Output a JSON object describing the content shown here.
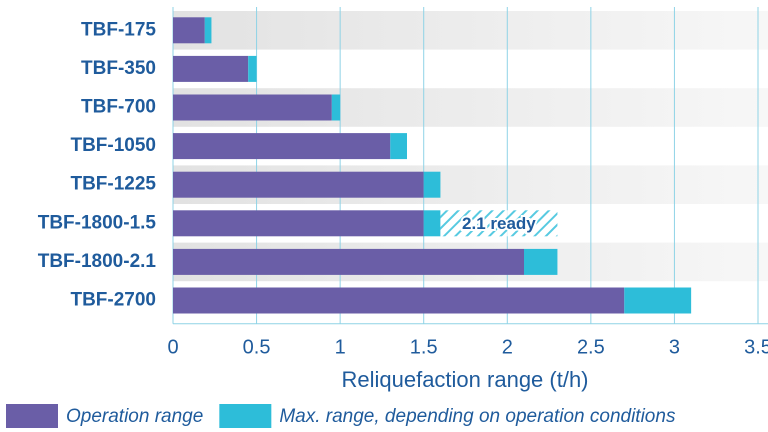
{
  "chart_data": {
    "type": "stacked-barh",
    "categories": [
      "TBF-175",
      "TBF-350",
      "TBF-700",
      "TBF-1050",
      "TBF-1225",
      "TBF-1800-1.5",
      "TBF-1800-2.1",
      "TBF-2700"
    ],
    "series": [
      {
        "name": "Operation range",
        "color": "#6a5ea7",
        "values": [
          0.19,
          0.45,
          0.95,
          1.3,
          1.5,
          1.5,
          2.1,
          2.7
        ]
      },
      {
        "name": "Max. range, depending on operation conditions",
        "color": "#2dbdd9",
        "values": [
          0.04,
          0.05,
          0.05,
          0.1,
          0.1,
          0.1,
          0.2,
          0.4
        ]
      }
    ],
    "extension": {
      "label": "2.1 ready",
      "category": "TBF-1800-1.5",
      "value": 0.7,
      "color": "#2dbdd9"
    },
    "xlabel": "Reliquefaction range (t/h)",
    "xlim": [
      0,
      3.5
    ],
    "xticks": [
      0,
      0.5,
      1,
      1.5,
      2,
      2.5,
      3,
      3.5
    ],
    "grid": true
  }
}
